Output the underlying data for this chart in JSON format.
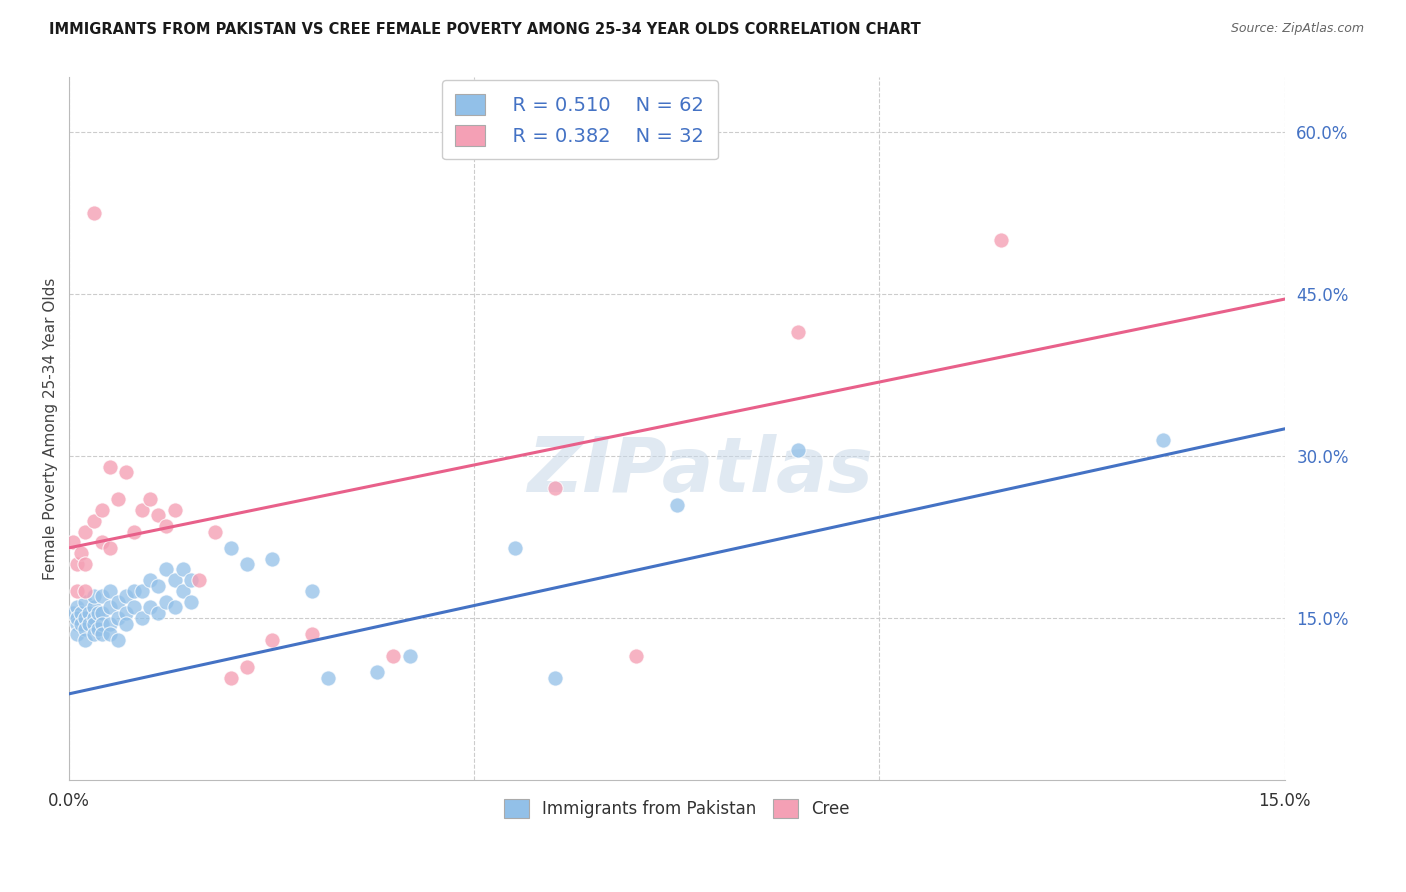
{
  "title": "IMMIGRANTS FROM PAKISTAN VS CREE FEMALE POVERTY AMONG 25-34 YEAR OLDS CORRELATION CHART",
  "source": "Source: ZipAtlas.com",
  "ylabel": "Female Poverty Among 25-34 Year Olds",
  "x_min": 0.0,
  "x_max": 0.15,
  "y_min": 0.0,
  "y_max": 0.65,
  "y_ticks": [
    0.15,
    0.3,
    0.45,
    0.6
  ],
  "blue_color": "#92C0E8",
  "pink_color": "#F4A0B5",
  "blue_line_color": "#4472C4",
  "pink_line_color": "#E8608A",
  "legend_R_blue": "0.510",
  "legend_N_blue": "62",
  "legend_R_pink": "0.382",
  "legend_N_pink": "32",
  "watermark": "ZIPatlas",
  "blue_scatter_x": [
    0.0005,
    0.001,
    0.001,
    0.001,
    0.001,
    0.0015,
    0.0015,
    0.002,
    0.002,
    0.002,
    0.002,
    0.0025,
    0.0025,
    0.003,
    0.003,
    0.003,
    0.003,
    0.003,
    0.0035,
    0.0035,
    0.004,
    0.004,
    0.004,
    0.004,
    0.005,
    0.005,
    0.005,
    0.005,
    0.006,
    0.006,
    0.006,
    0.007,
    0.007,
    0.007,
    0.008,
    0.008,
    0.009,
    0.009,
    0.01,
    0.01,
    0.011,
    0.011,
    0.012,
    0.012,
    0.013,
    0.013,
    0.014,
    0.014,
    0.015,
    0.015,
    0.02,
    0.022,
    0.025,
    0.03,
    0.032,
    0.038,
    0.042,
    0.055,
    0.06,
    0.075,
    0.09,
    0.135
  ],
  "blue_scatter_y": [
    0.155,
    0.16,
    0.145,
    0.135,
    0.15,
    0.155,
    0.145,
    0.15,
    0.14,
    0.13,
    0.165,
    0.155,
    0.145,
    0.16,
    0.15,
    0.145,
    0.135,
    0.17,
    0.155,
    0.14,
    0.155,
    0.145,
    0.135,
    0.17,
    0.16,
    0.145,
    0.135,
    0.175,
    0.165,
    0.15,
    0.13,
    0.17,
    0.155,
    0.145,
    0.175,
    0.16,
    0.175,
    0.15,
    0.185,
    0.16,
    0.18,
    0.155,
    0.195,
    0.165,
    0.185,
    0.16,
    0.175,
    0.195,
    0.185,
    0.165,
    0.215,
    0.2,
    0.205,
    0.175,
    0.095,
    0.1,
    0.115,
    0.215,
    0.095,
    0.255,
    0.305,
    0.315
  ],
  "pink_scatter_x": [
    0.0005,
    0.001,
    0.001,
    0.0015,
    0.002,
    0.002,
    0.002,
    0.003,
    0.003,
    0.004,
    0.004,
    0.005,
    0.005,
    0.006,
    0.007,
    0.008,
    0.009,
    0.01,
    0.011,
    0.012,
    0.013,
    0.016,
    0.018,
    0.02,
    0.022,
    0.025,
    0.03,
    0.04,
    0.06,
    0.07,
    0.09,
    0.115
  ],
  "pink_scatter_y": [
    0.22,
    0.2,
    0.175,
    0.21,
    0.23,
    0.2,
    0.175,
    0.525,
    0.24,
    0.25,
    0.22,
    0.29,
    0.215,
    0.26,
    0.285,
    0.23,
    0.25,
    0.26,
    0.245,
    0.235,
    0.25,
    0.185,
    0.23,
    0.095,
    0.105,
    0.13,
    0.135,
    0.115,
    0.27,
    0.115,
    0.415,
    0.5
  ],
  "blue_trend_x": [
    0.0,
    0.15
  ],
  "blue_trend_y": [
    0.08,
    0.325
  ],
  "pink_trend_x": [
    0.0,
    0.15
  ],
  "pink_trend_y": [
    0.215,
    0.445
  ],
  "background_color": "#FFFFFF",
  "grid_color": "#CCCCCC"
}
